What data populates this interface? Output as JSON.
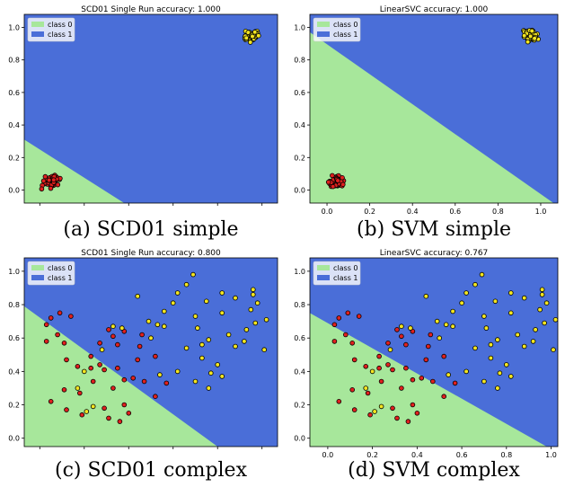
{
  "chart_data": [
    {
      "type": "scatter",
      "title": "SCD01 Single Run accuracy: 1.000",
      "caption": "(a) SCD01 simple",
      "xlim": [
        -0.07,
        1.07
      ],
      "ylim": [
        -0.08,
        1.08
      ],
      "xticks": [],
      "yticks": [
        "0.0",
        "0.2",
        "0.4",
        "0.6",
        "0.8",
        "1.0"
      ],
      "x_tick_marks": [
        0.0,
        0.2,
        0.4,
        0.6,
        0.8,
        1.0
      ],
      "decision_boundary": [
        [
          -0.07,
          0.31
        ],
        [
          0.38,
          -0.08
        ]
      ],
      "region_below": "class 0",
      "region_above": "class 1",
      "legend": [
        "class 0",
        "class 1"
      ],
      "legend_position": "upper-left",
      "colors": {
        "class0_region": "#a7e79b",
        "class1_region": "#4a6ed8",
        "class0_point": "#e0201e",
        "class1_point": "#f3e521"
      },
      "series": [
        {
          "name": "class 0",
          "cluster": {
            "center": [
              0.05,
              0.05
            ],
            "spread": 0.05,
            "count": 50
          }
        },
        {
          "name": "class 1",
          "cluster": {
            "center": [
              0.95,
              0.95
            ],
            "spread": 0.05,
            "count": 50
          }
        }
      ]
    },
    {
      "type": "scatter",
      "title": "LinearSVC accuracy: 1.000",
      "caption": "(b) SVM simple",
      "xlim": [
        -0.08,
        1.08
      ],
      "ylim": [
        -0.08,
        1.08
      ],
      "xticks": [
        "0.0",
        "0.2",
        "0.4",
        "0.6",
        "0.8",
        "1.0"
      ],
      "yticks": [
        "0.0",
        "0.2",
        "0.4",
        "0.6",
        "0.8",
        "1.0"
      ],
      "decision_boundary": [
        [
          -0.08,
          0.97
        ],
        [
          1.06,
          -0.08
        ]
      ],
      "region_below": "class 0",
      "region_above": "class 1",
      "legend": [
        "class 0",
        "class 1"
      ],
      "legend_position": "upper-left",
      "colors": {
        "class0_region": "#a7e79b",
        "class1_region": "#4a6ed8",
        "class0_point": "#e0201e",
        "class1_point": "#f3e521"
      },
      "series": [
        {
          "name": "class 0",
          "cluster": {
            "center": [
              0.05,
              0.05
            ],
            "spread": 0.05,
            "count": 50
          }
        },
        {
          "name": "class 1",
          "cluster": {
            "center": [
              0.95,
              0.95
            ],
            "spread": 0.05,
            "count": 50
          }
        }
      ]
    },
    {
      "type": "scatter",
      "title": "SCD01 Single Run accuracy: 0.800",
      "caption": "(c) SCD01 complex",
      "xlim": [
        -0.07,
        1.07
      ],
      "ylim": [
        -0.05,
        1.08
      ],
      "xticks": [],
      "yticks": [
        "0.0",
        "0.2",
        "0.4",
        "0.6",
        "0.8",
        "1.0"
      ],
      "x_tick_marks": [
        0.0,
        0.2,
        0.4,
        0.6,
        0.8,
        1.0
      ],
      "decision_boundary": [
        [
          -0.07,
          0.79
        ],
        [
          0.8,
          -0.05
        ]
      ],
      "region_below": "class 0",
      "region_above": "class 1",
      "legend": [
        "class 0",
        "class 1"
      ],
      "legend_position": "upper-left",
      "colors": {
        "class0_region": "#a7e79b",
        "class1_region": "#4a6ed8",
        "class0_point": "#e0201e",
        "class1_point": "#f3e521"
      },
      "series": [
        {
          "name": "class 0",
          "points": [
            [
              0.05,
              0.72
            ],
            [
              0.09,
              0.75
            ],
            [
              0.14,
              0.73
            ],
            [
              0.03,
              0.68
            ],
            [
              0.03,
              0.58
            ],
            [
              0.08,
              0.62
            ],
            [
              0.11,
              0.57
            ],
            [
              0.12,
              0.47
            ],
            [
              0.17,
              0.43
            ],
            [
              0.23,
              0.42
            ],
            [
              0.27,
              0.44
            ],
            [
              0.24,
              0.34
            ],
            [
              0.18,
              0.27
            ],
            [
              0.11,
              0.29
            ],
            [
              0.05,
              0.22
            ],
            [
              0.12,
              0.17
            ],
            [
              0.19,
              0.14
            ],
            [
              0.29,
              0.18
            ],
            [
              0.31,
              0.12
            ],
            [
              0.36,
              0.1
            ],
            [
              0.38,
              0.2
            ],
            [
              0.33,
              0.3
            ],
            [
              0.38,
              0.35
            ],
            [
              0.47,
              0.34
            ],
            [
              0.52,
              0.25
            ],
            [
              0.57,
              0.33
            ],
            [
              0.46,
              0.62
            ],
            [
              0.44,
              0.47
            ],
            [
              0.52,
              0.49
            ],
            [
              0.38,
              0.64
            ],
            [
              0.31,
              0.65
            ],
            [
              0.27,
              0.57
            ],
            [
              0.23,
              0.49
            ],
            [
              0.29,
              0.41
            ],
            [
              0.35,
              0.42
            ],
            [
              0.45,
              0.55
            ],
            [
              0.4,
              0.15
            ],
            [
              0.33,
              0.61
            ],
            [
              0.35,
              0.56
            ],
            [
              0.42,
              0.36
            ]
          ]
        },
        {
          "name": "class 1",
          "points": [
            [
              0.44,
              0.85
            ],
            [
              0.49,
              0.7
            ],
            [
              0.56,
              0.76
            ],
            [
              0.56,
              0.67
            ],
            [
              0.66,
              0.92
            ],
            [
              0.7,
              0.73
            ],
            [
              0.71,
              0.66
            ],
            [
              0.76,
              0.59
            ],
            [
              0.73,
              0.56
            ],
            [
              0.82,
              0.87
            ],
            [
              0.88,
              0.84
            ],
            [
              0.95,
              0.77
            ],
            [
              0.97,
              0.69
            ],
            [
              1.02,
              0.71
            ],
            [
              1.01,
              0.53
            ],
            [
              0.93,
              0.65
            ],
            [
              0.92,
              0.58
            ],
            [
              0.82,
              0.75
            ],
            [
              0.75,
              0.82
            ],
            [
              0.62,
              0.87
            ],
            [
              0.6,
              0.81
            ],
            [
              0.66,
              0.54
            ],
            [
              0.73,
              0.48
            ],
            [
              0.8,
              0.44
            ],
            [
              0.82,
              0.37
            ],
            [
              0.77,
              0.39
            ],
            [
              0.76,
              0.3
            ],
            [
              0.7,
              0.34
            ],
            [
              0.62,
              0.4
            ],
            [
              0.96,
              0.86
            ],
            [
              0.98,
              0.81
            ],
            [
              0.96,
              0.89
            ],
            [
              0.69,
              0.98
            ],
            [
              0.53,
              0.68
            ],
            [
              0.37,
              0.66
            ],
            [
              0.33,
              0.67
            ],
            [
              0.5,
              0.6
            ],
            [
              0.54,
              0.38
            ],
            [
              0.28,
              0.53
            ],
            [
              0.24,
              0.19
            ],
            [
              0.21,
              0.16
            ],
            [
              0.2,
              0.4
            ],
            [
              0.17,
              0.3
            ],
            [
              0.85,
              0.62
            ],
            [
              0.88,
              0.55
            ]
          ]
        }
      ]
    },
    {
      "type": "scatter",
      "title": "LinearSVC accuracy: 0.767",
      "caption": "(d) SVM complex",
      "xlim": [
        -0.08,
        1.03
      ],
      "ylim": [
        -0.05,
        1.08
      ],
      "xticks": [
        "0.0",
        "0.2",
        "0.4",
        "0.6",
        "0.8",
        "1.0"
      ],
      "yticks": [
        "0.0",
        "0.2",
        "0.4",
        "0.6",
        "0.8",
        "1.0"
      ],
      "decision_boundary": [
        [
          -0.08,
          0.75
        ],
        [
          0.98,
          -0.05
        ]
      ],
      "region_below": "class 0",
      "region_above": "class 1",
      "legend": [
        "class 0",
        "class 1"
      ],
      "legend_position": "upper-left",
      "colors": {
        "class0_region": "#a7e79b",
        "class1_region": "#4a6ed8",
        "class0_point": "#e0201e",
        "class1_point": "#f3e521"
      },
      "series": [
        {
          "name": "class 0",
          "points": [
            [
              0.05,
              0.72
            ],
            [
              0.09,
              0.75
            ],
            [
              0.14,
              0.73
            ],
            [
              0.03,
              0.68
            ],
            [
              0.03,
              0.58
            ],
            [
              0.08,
              0.62
            ],
            [
              0.11,
              0.57
            ],
            [
              0.12,
              0.47
            ],
            [
              0.17,
              0.43
            ],
            [
              0.23,
              0.42
            ],
            [
              0.27,
              0.44
            ],
            [
              0.24,
              0.34
            ],
            [
              0.18,
              0.27
            ],
            [
              0.11,
              0.29
            ],
            [
              0.05,
              0.22
            ],
            [
              0.12,
              0.17
            ],
            [
              0.19,
              0.14
            ],
            [
              0.29,
              0.18
            ],
            [
              0.31,
              0.12
            ],
            [
              0.36,
              0.1
            ],
            [
              0.38,
              0.2
            ],
            [
              0.33,
              0.3
            ],
            [
              0.38,
              0.35
            ],
            [
              0.47,
              0.34
            ],
            [
              0.52,
              0.25
            ],
            [
              0.57,
              0.33
            ],
            [
              0.46,
              0.62
            ],
            [
              0.44,
              0.47
            ],
            [
              0.52,
              0.49
            ],
            [
              0.38,
              0.64
            ],
            [
              0.31,
              0.65
            ],
            [
              0.27,
              0.57
            ],
            [
              0.23,
              0.49
            ],
            [
              0.29,
              0.41
            ],
            [
              0.35,
              0.42
            ],
            [
              0.45,
              0.55
            ],
            [
              0.4,
              0.15
            ],
            [
              0.33,
              0.61
            ],
            [
              0.35,
              0.56
            ],
            [
              0.42,
              0.36
            ]
          ]
        },
        {
          "name": "class 1",
          "points": [
            [
              0.44,
              0.85
            ],
            [
              0.49,
              0.7
            ],
            [
              0.56,
              0.76
            ],
            [
              0.56,
              0.67
            ],
            [
              0.66,
              0.92
            ],
            [
              0.7,
              0.73
            ],
            [
              0.71,
              0.66
            ],
            [
              0.76,
              0.59
            ],
            [
              0.73,
              0.56
            ],
            [
              0.82,
              0.87
            ],
            [
              0.88,
              0.84
            ],
            [
              0.95,
              0.77
            ],
            [
              0.97,
              0.69
            ],
            [
              1.02,
              0.71
            ],
            [
              1.01,
              0.53
            ],
            [
              0.93,
              0.65
            ],
            [
              0.92,
              0.58
            ],
            [
              0.82,
              0.75
            ],
            [
              0.75,
              0.82
            ],
            [
              0.62,
              0.87
            ],
            [
              0.6,
              0.81
            ],
            [
              0.66,
              0.54
            ],
            [
              0.73,
              0.48
            ],
            [
              0.8,
              0.44
            ],
            [
              0.82,
              0.37
            ],
            [
              0.77,
              0.39
            ],
            [
              0.76,
              0.3
            ],
            [
              0.7,
              0.34
            ],
            [
              0.62,
              0.4
            ],
            [
              0.96,
              0.86
            ],
            [
              0.98,
              0.81
            ],
            [
              0.96,
              0.89
            ],
            [
              0.69,
              0.98
            ],
            [
              0.53,
              0.68
            ],
            [
              0.37,
              0.66
            ],
            [
              0.33,
              0.67
            ],
            [
              0.5,
              0.6
            ],
            [
              0.54,
              0.38
            ],
            [
              0.28,
              0.53
            ],
            [
              0.24,
              0.19
            ],
            [
              0.21,
              0.16
            ],
            [
              0.2,
              0.4
            ],
            [
              0.17,
              0.3
            ],
            [
              0.85,
              0.62
            ],
            [
              0.88,
              0.55
            ]
          ]
        }
      ]
    }
  ]
}
